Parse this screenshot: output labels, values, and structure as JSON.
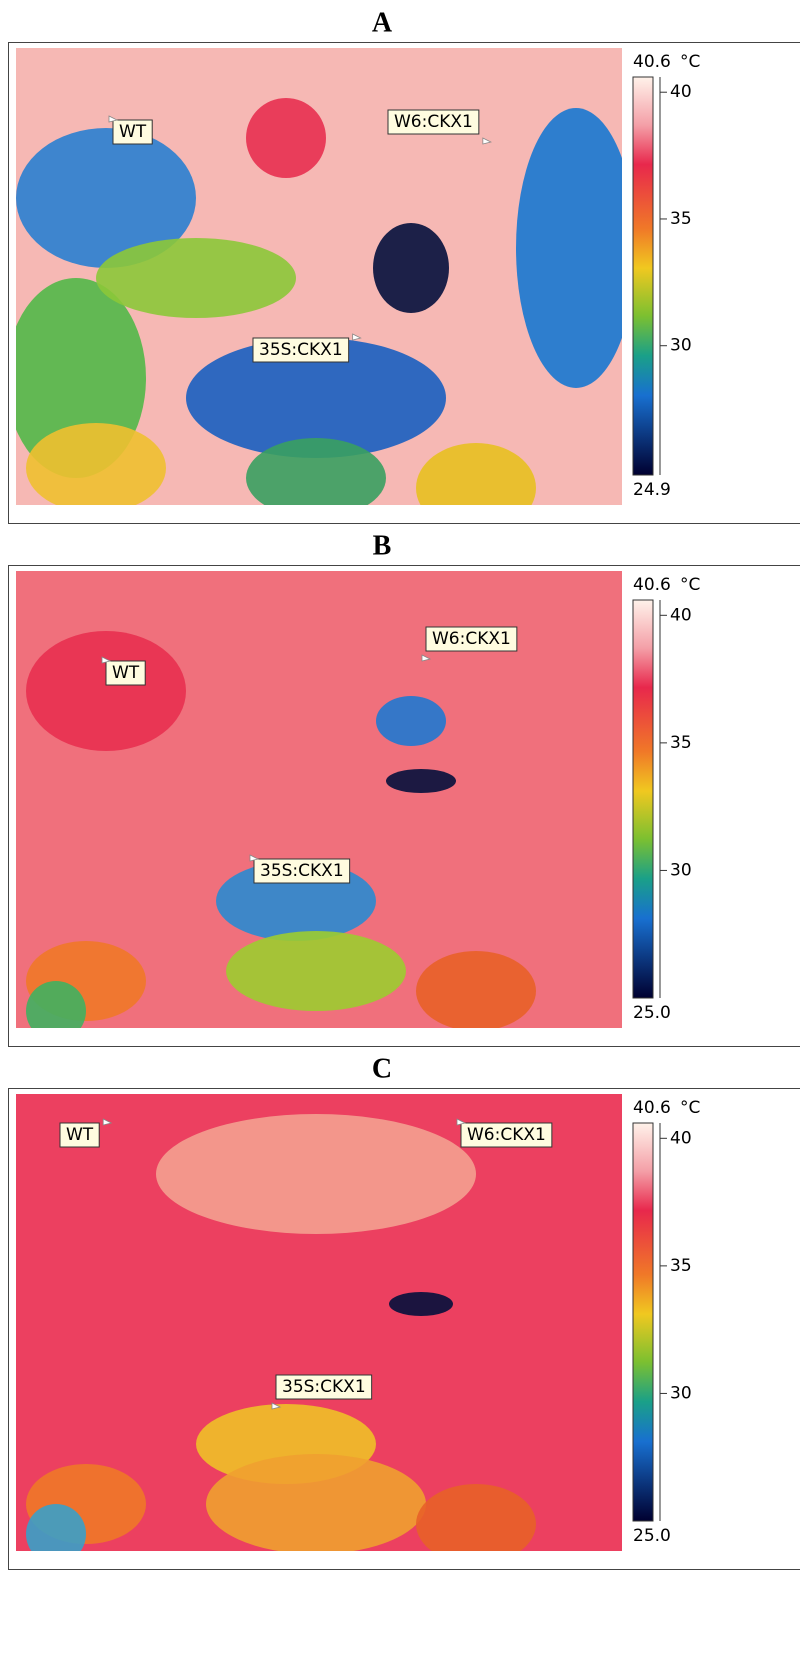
{
  "panels": [
    {
      "title": "A",
      "scale": {
        "max": 40.6,
        "unit": "°C",
        "min": 24.9,
        "ticks": [
          40,
          35,
          30
        ]
      },
      "annotations": [
        "WT",
        "W6:CKX1",
        "35S:CKX1"
      ]
    },
    {
      "title": "B",
      "scale": {
        "max": 40.6,
        "unit": "°C",
        "min": {
          "value": 25,
          "label": "25.0"
        },
        "ticks": [
          40,
          35,
          30
        ]
      },
      "annotations": [
        "WT",
        "W6:CKX1",
        "35S:CKX1"
      ]
    },
    {
      "title": "C",
      "scale": {
        "max": 40.6,
        "unit": "°C",
        "min": {
          "value": 25,
          "label": "25.0"
        },
        "ticks": [
          40,
          35,
          30
        ]
      },
      "annotations": [
        "WT",
        "W6:CKX1",
        "35S:CKX1"
      ]
    }
  ]
}
